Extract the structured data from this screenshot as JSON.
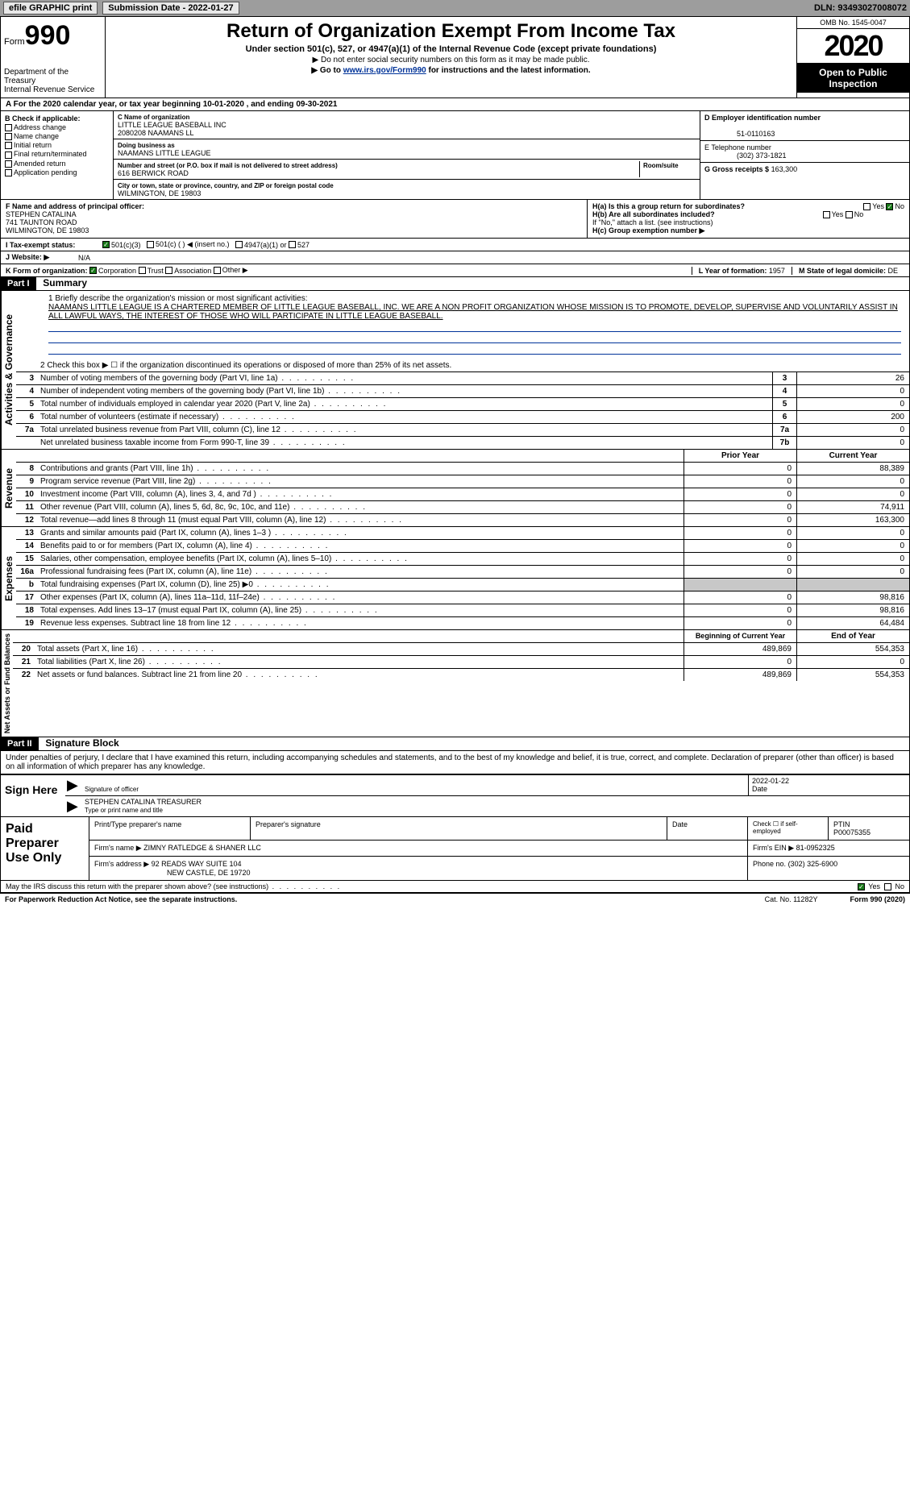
{
  "topbar": {
    "efile": "efile GRAPHIC print",
    "submission_label": "Submission Date - 2022-01-27",
    "dln": "DLN: 93493027008072"
  },
  "header": {
    "form_label": "Form",
    "form_num": "990",
    "dept": "Department of the Treasury\nInternal Revenue Service",
    "title": "Return of Organization Exempt From Income Tax",
    "subtitle": "Under section 501(c), 527, or 4947(a)(1) of the Internal Revenue Code (except private foundations)",
    "note1": "▶ Do not enter social security numbers on this form as it may be made public.",
    "note2_pre": "▶ Go to ",
    "note2_link": "www.irs.gov/Form990",
    "note2_post": " for instructions and the latest information.",
    "omb": "OMB No. 1545-0047",
    "year": "2020",
    "inspection": "Open to Public Inspection"
  },
  "period": "A For the 2020 calendar year, or tax year beginning 10-01-2020   , and ending 09-30-2021",
  "checkboxes": {
    "b_label": "B Check if applicable:",
    "addr": "Address change",
    "name": "Name change",
    "initial": "Initial return",
    "final": "Final return/terminated",
    "amended": "Amended return",
    "app": "Application pending"
  },
  "org": {
    "c_label": "C Name of organization",
    "name1": "LITTLE LEAGUE BASEBALL INC",
    "name2": "2080208 NAAMANS LL",
    "dba_label": "Doing business as",
    "dba": "NAAMANS LITTLE LEAGUE",
    "street_label": "Number and street (or P.O. box if mail is not delivered to street address)",
    "room_label": "Room/suite",
    "street": "616 BERWICK ROAD",
    "city_label": "City or town, state or province, country, and ZIP or foreign postal code",
    "city": "WILMINGTON, DE  19803"
  },
  "right": {
    "d_label": "D Employer identification number",
    "ein": "51-0110163",
    "e_label": "E Telephone number",
    "phone": "(302) 373-1821",
    "g_label": "G Gross receipts $",
    "gross": "163,300"
  },
  "f": {
    "label": "F  Name and address of principal officer:",
    "name": "STEPHEN CATALINA",
    "street": "741 TAUNTON ROAD",
    "city": "WILMINGTON, DE  19803"
  },
  "h": {
    "a": "H(a)  Is this a group return for subordinates?",
    "b": "H(b)  Are all subordinates included?",
    "note": "If \"No,\" attach a list. (see instructions)",
    "c": "H(c)  Group exemption number ▶",
    "yes": "Yes",
    "no": "No"
  },
  "i": {
    "label": "I   Tax-exempt status:",
    "c3": "501(c)(3)",
    "c": "501(c) (  ) ◀ (insert no.)",
    "a1": "4947(a)(1) or",
    "527": "527"
  },
  "j": {
    "label": "J   Website: ▶",
    "value": "N/A"
  },
  "k": {
    "label": "K Form of organization:",
    "corp": "Corporation",
    "trust": "Trust",
    "assoc": "Association",
    "other": "Other ▶"
  },
  "l": {
    "label": "L Year of formation:",
    "value": "1957"
  },
  "m": {
    "label": "M State of legal domicile:",
    "value": "DE"
  },
  "part1": {
    "hdr": "Part I",
    "title": "Summary",
    "line1_label": "1  Briefly describe the organization's mission or most significant activities:",
    "mission": "NAAMANS LITTLE LEAGUE IS A CHARTERED MEMBER OF LITTLE LEAGUE BASEBALL, INC. WE ARE A NON PROFIT ORGANIZATION WHOSE MISSION IS TO PROMOTE, DEVELOP, SUPERVISE AND VOLUNTARILY ASSIST IN ALL LAWFUL WAYS, THE INTEREST OF THOSE WHO WILL PARTICIPATE IN LITTLE LEAGUE BASEBALL.",
    "line2": "2   Check this box ▶ ☐  if the organization discontinued its operations or disposed of more than 25% of its net assets.",
    "gov_rows": [
      {
        "n": "3",
        "label": "Number of voting members of the governing body (Part VI, line 1a)",
        "cell": "3",
        "val": "26"
      },
      {
        "n": "4",
        "label": "Number of independent voting members of the governing body (Part VI, line 1b)",
        "cell": "4",
        "val": "0"
      },
      {
        "n": "5",
        "label": "Total number of individuals employed in calendar year 2020 (Part V, line 2a)",
        "cell": "5",
        "val": "0"
      },
      {
        "n": "6",
        "label": "Total number of volunteers (estimate if necessary)",
        "cell": "6",
        "val": "200"
      },
      {
        "n": "7a",
        "label": "Total unrelated business revenue from Part VIII, column (C), line 12",
        "cell": "7a",
        "val": "0"
      },
      {
        "n": "",
        "label": "Net unrelated business taxable income from Form 990-T, line 39",
        "cell": "7b",
        "val": "0"
      }
    ],
    "col_prior": "Prior Year",
    "col_current": "Current Year",
    "rev_rows": [
      {
        "n": "8",
        "label": "Contributions and grants (Part VIII, line 1h)",
        "prior": "0",
        "cur": "88,389"
      },
      {
        "n": "9",
        "label": "Program service revenue (Part VIII, line 2g)",
        "prior": "0",
        "cur": "0"
      },
      {
        "n": "10",
        "label": "Investment income (Part VIII, column (A), lines 3, 4, and 7d )",
        "prior": "0",
        "cur": "0"
      },
      {
        "n": "11",
        "label": "Other revenue (Part VIII, column (A), lines 5, 6d, 8c, 9c, 10c, and 11e)",
        "prior": "0",
        "cur": "74,911"
      },
      {
        "n": "12",
        "label": "Total revenue—add lines 8 through 11 (must equal Part VIII, column (A), line 12)",
        "prior": "0",
        "cur": "163,300"
      }
    ],
    "exp_rows": [
      {
        "n": "13",
        "label": "Grants and similar amounts paid (Part IX, column (A), lines 1–3 )",
        "prior": "0",
        "cur": "0"
      },
      {
        "n": "14",
        "label": "Benefits paid to or for members (Part IX, column (A), line 4)",
        "prior": "0",
        "cur": "0"
      },
      {
        "n": "15",
        "label": "Salaries, other compensation, employee benefits (Part IX, column (A), lines 5–10)",
        "prior": "0",
        "cur": "0"
      },
      {
        "n": "16a",
        "label": "Professional fundraising fees (Part IX, column (A), line 11e)",
        "prior": "0",
        "cur": "0"
      },
      {
        "n": "b",
        "label": "Total fundraising expenses (Part IX, column (D), line 25) ▶0",
        "prior": "",
        "cur": "",
        "gray": true
      },
      {
        "n": "17",
        "label": "Other expenses (Part IX, column (A), lines 11a–11d, 11f–24e)",
        "prior": "0",
        "cur": "98,816"
      },
      {
        "n": "18",
        "label": "Total expenses. Add lines 13–17 (must equal Part IX, column (A), line 25)",
        "prior": "0",
        "cur": "98,816"
      },
      {
        "n": "19",
        "label": "Revenue less expenses. Subtract line 18 from line 12",
        "prior": "0",
        "cur": "64,484"
      }
    ],
    "col_begin": "Beginning of Current Year",
    "col_end": "End of Year",
    "net_rows": [
      {
        "n": "20",
        "label": "Total assets (Part X, line 16)",
        "prior": "489,869",
        "cur": "554,353"
      },
      {
        "n": "21",
        "label": "Total liabilities (Part X, line 26)",
        "prior": "0",
        "cur": "0"
      },
      {
        "n": "22",
        "label": "Net assets or fund balances. Subtract line 21 from line 20",
        "prior": "489,869",
        "cur": "554,353"
      }
    ],
    "vert_gov": "Activities & Governance",
    "vert_rev": "Revenue",
    "vert_exp": "Expenses",
    "vert_net": "Net Assets or Fund Balances"
  },
  "part2": {
    "hdr": "Part II",
    "title": "Signature Block",
    "penalty": "Under penalties of perjury, I declare that I have examined this return, including accompanying schedules and statements, and to the best of my knowledge and belief, it is true, correct, and complete. Declaration of preparer (other than officer) is based on all information of which preparer has any knowledge."
  },
  "sign": {
    "here": "Sign Here",
    "sig_label": "Signature of officer",
    "date": "2022-01-22",
    "date_label": "Date",
    "name": "STEPHEN CATALINA  TREASURER",
    "name_label": "Type or print name and title"
  },
  "prep": {
    "title": "Paid Preparer Use Only",
    "print_label": "Print/Type preparer's name",
    "sig_label": "Preparer's signature",
    "date_label": "Date",
    "check_label": "Check ☐ if self-employed",
    "ptin_label": "PTIN",
    "ptin": "P00075355",
    "firm_name_label": "Firm's name    ▶",
    "firm_name": "ZIMNY RATLEDGE & SHANER LLC",
    "firm_ein_label": "Firm's EIN ▶",
    "firm_ein": "81-0952325",
    "firm_addr_label": "Firm's address ▶",
    "firm_addr1": "92 READS WAY SUITE 104",
    "firm_addr2": "NEW CASTLE, DE  19720",
    "phone_label": "Phone no.",
    "phone": "(302) 325-6900"
  },
  "discuss": {
    "label": "May the IRS discuss this return with the preparer shown above? (see instructions)",
    "yes": "Yes",
    "no": "No"
  },
  "footer": {
    "pra": "For Paperwork Reduction Act Notice, see the separate instructions.",
    "cat": "Cat. No. 11282Y",
    "form": "Form 990 (2020)"
  },
  "colors": {
    "topbar_bg": "#9d9d9d",
    "link": "#003399",
    "check_green": "#1a7a1a",
    "gray_cell": "#c8c8c8"
  }
}
